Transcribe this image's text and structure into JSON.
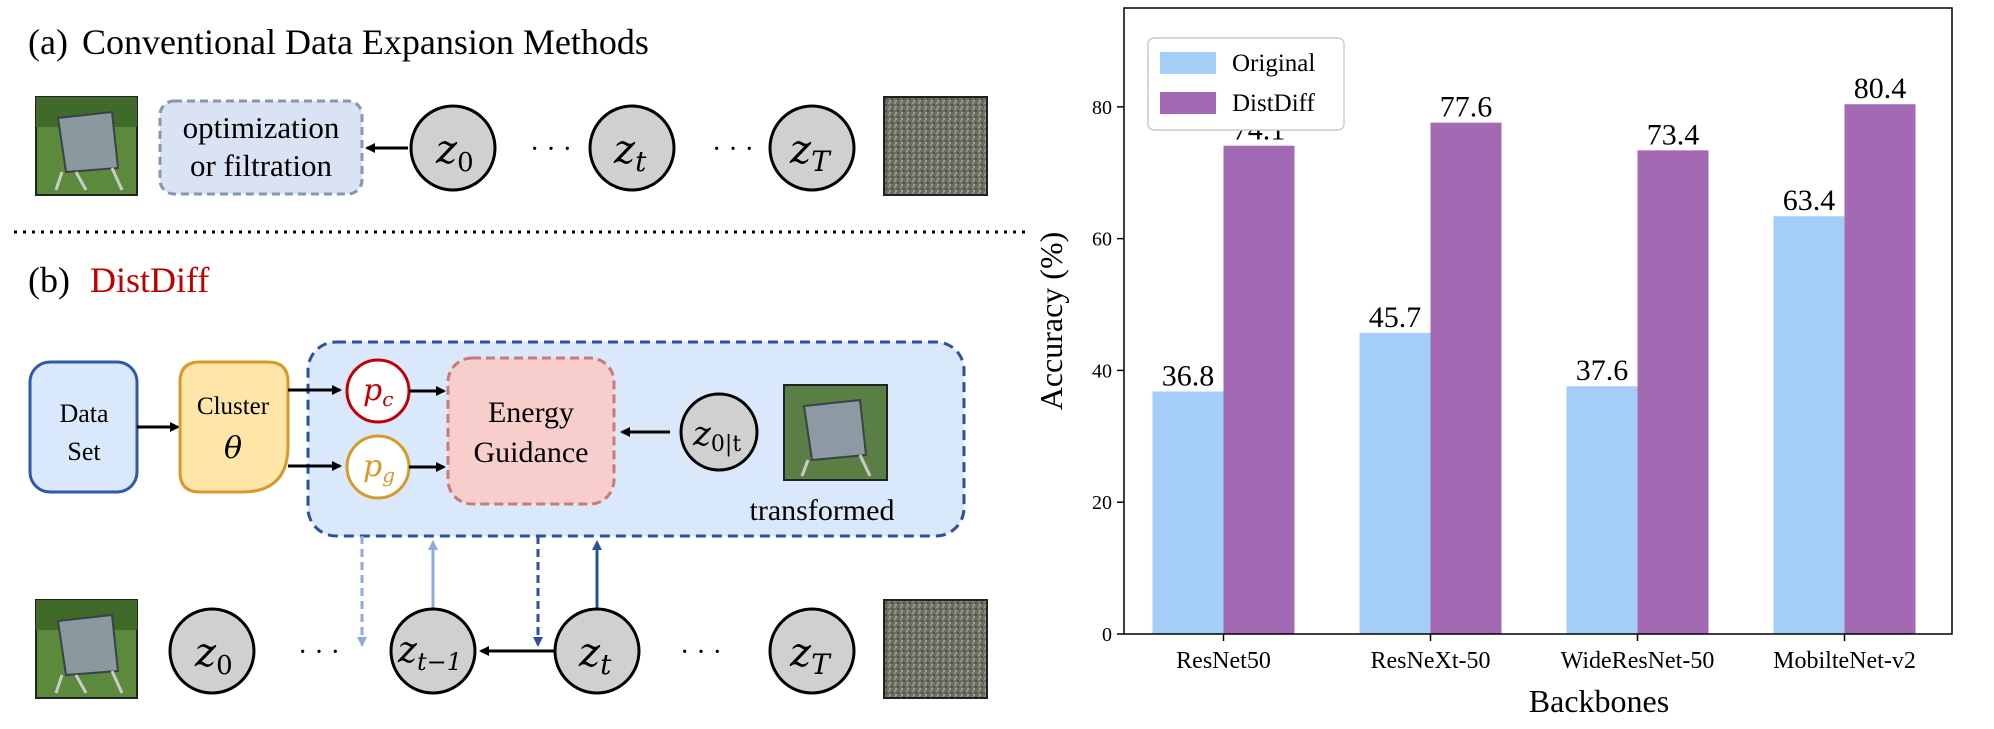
{
  "diagram": {
    "panel_a": {
      "prefix": "(a)",
      "title": "Conventional Data Expansion Methods",
      "box_line1": "optimization",
      "box_line2": "or filtration",
      "z0": "z",
      "z0_sub": "0",
      "zt": "z",
      "zt_sub": "t",
      "zT": "z",
      "zT_sub": "T",
      "dots": "· · ·"
    },
    "panel_b": {
      "prefix": "(b)",
      "title": "DistDiff",
      "dataset_line1": "Data",
      "dataset_line2": "Set",
      "cluster_line1": "Cluster",
      "cluster_theta": "θ",
      "pc": "p",
      "pc_sub": "c",
      "pg": "p",
      "pg_sub": "g",
      "energy_line1": "Energy",
      "energy_line2": "Guidance",
      "z0t": "z",
      "z0t_sub": "0|t",
      "transformed": "transformed",
      "z0": "z",
      "z0_sub": "0",
      "ztm1": "z",
      "ztm1_sub": "t−1",
      "zt": "z",
      "zt_sub": "t",
      "zT": "z",
      "zT_sub": "T",
      "dots": "· · ·"
    },
    "colors": {
      "red": "#c00000",
      "blue_dark": "#2e4f9c",
      "blue_light": "#8faadc",
      "orange": "#d69a2b"
    }
  },
  "chart_data": {
    "type": "bar",
    "categories": [
      "ResNet50",
      "ResNeXt-50",
      "WideResNet-50",
      "MobilteNet-v2"
    ],
    "series": [
      {
        "name": "Original",
        "values": [
          36.8,
          45.7,
          37.6,
          63.4
        ],
        "color": "#a4cef8"
      },
      {
        "name": "DistDiff",
        "values": [
          74.1,
          77.6,
          73.4,
          80.4
        ],
        "color": "#a36ab3"
      }
    ],
    "value_labels": [
      [
        "36.8",
        "45.7",
        "37.6",
        "63.4"
      ],
      [
        "74.1",
        "77.6",
        "73.4",
        "80.4"
      ]
    ],
    "xlabel": "Backbones",
    "ylabel": "Accuracy (%)",
    "ylim": [
      0,
      95
    ],
    "yticks": [
      0,
      20,
      40,
      60,
      80
    ],
    "grid": false,
    "legend": "top-left"
  }
}
